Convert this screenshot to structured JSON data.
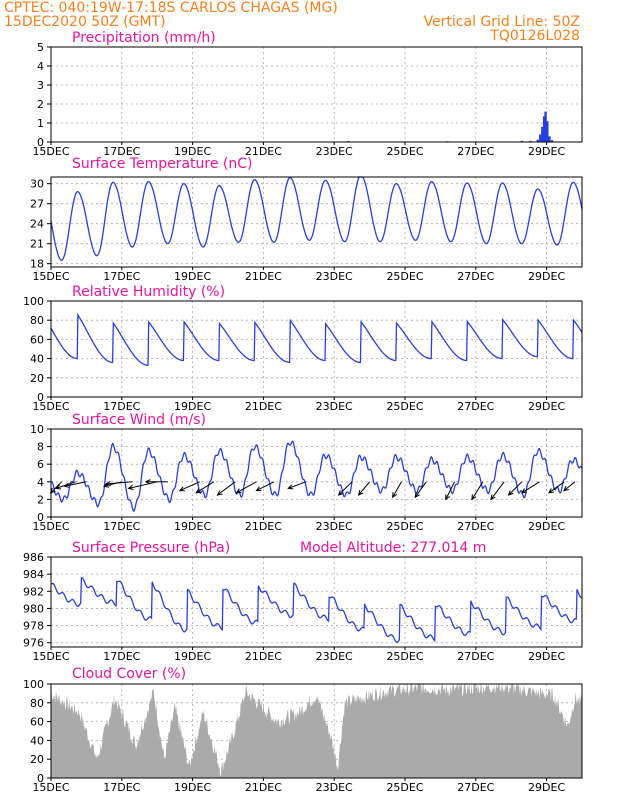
{
  "header": {
    "line1_left": "CPTEC:   040:19W-17:18S   CARLOS CHAGAS (MG)",
    "line2_left": "15DEC2020 50Z (GMT)",
    "line2_right": "Vertical Grid Line: 50Z",
    "line3_right": "TQ0126L028"
  },
  "x_axis": {
    "ticks": [
      {
        "day": 0,
        "label": "15DEC"
      },
      {
        "day": 2,
        "label": "17DEC"
      },
      {
        "day": 4,
        "label": "19DEC"
      },
      {
        "day": 6,
        "label": "21DEC"
      },
      {
        "day": 8,
        "label": "23DEC"
      },
      {
        "day": 10,
        "label": "25DEC"
      },
      {
        "day": 12,
        "label": "27DEC"
      },
      {
        "day": 14,
        "label": "29DEC"
      }
    ],
    "range_days": [
      0,
      15
    ]
  },
  "colors": {
    "series": "#2a3fe0",
    "title": "#e8179b",
    "header": "#ff7f1f",
    "cloud": "#aaaaaa"
  },
  "chart_data": [
    {
      "type": "bar",
      "title": "Precipitation (mm/h)",
      "yticks": [
        0,
        1,
        2,
        3,
        4,
        5
      ],
      "ylim": [
        0,
        5
      ],
      "points": [
        [
          8.4,
          0.05
        ],
        [
          11.2,
          0.04
        ],
        [
          13.3,
          0.06
        ],
        [
          13.55,
          0.06
        ],
        [
          13.75,
          0.12
        ],
        [
          13.82,
          0.4
        ],
        [
          13.88,
          0.8
        ],
        [
          13.93,
          1.35
        ],
        [
          13.97,
          1.6
        ],
        [
          14.02,
          1.1
        ],
        [
          14.08,
          0.3
        ],
        [
          14.15,
          0.1
        ]
      ],
      "grid": true
    },
    {
      "type": "line",
      "title": "Surface Temperature (nC)",
      "yticks": [
        18,
        21,
        24,
        27,
        30
      ],
      "ylim": [
        17.5,
        31
      ],
      "daily_max": [
        28.8,
        30.2,
        30.3,
        30.0,
        29.7,
        30.6,
        30.9,
        30.5,
        31.3,
        30.0,
        30.3,
        30.1,
        30.1,
        29.2,
        30.2
      ],
      "daily_min": [
        18.5,
        19.2,
        20.5,
        21.0,
        20.5,
        21.2,
        21.2,
        21.5,
        21.3,
        21.3,
        21.5,
        21.3,
        21.0,
        21.0,
        20.8
      ],
      "grid": true
    },
    {
      "type": "line",
      "title": "Relative Humidity (%)",
      "yticks": [
        0,
        20,
        40,
        60,
        80,
        100
      ],
      "ylim": [
        0,
        100
      ],
      "daily_max": [
        100,
        90,
        90,
        90,
        88,
        90,
        92,
        88,
        90,
        88,
        90,
        90,
        92,
        92,
        92
      ],
      "daily_min": [
        40,
        36,
        33,
        38,
        38,
        38,
        36,
        38,
        36,
        38,
        40,
        38,
        40,
        42,
        40
      ],
      "grid": true
    },
    {
      "type": "line",
      "title": "Surface Wind (m/s)",
      "yticks": [
        0,
        2,
        4,
        6,
        8,
        10
      ],
      "ylim": [
        0,
        10
      ],
      "daily_max": [
        5.0,
        8.0,
        7.5,
        7.0,
        7.5,
        8.0,
        8.5,
        7.0,
        6.8,
        6.8,
        6.5,
        6.8,
        7.0,
        7.5,
        6.5
      ],
      "daily_min": [
        2.0,
        1.5,
        1.0,
        2.0,
        2.5,
        2.5,
        2.5,
        2.5,
        2.5,
        3.0,
        3.0,
        3.0,
        3.0,
        2.5,
        3.0
      ],
      "wind_vectors": [
        [
          0.3,
          -0.5,
          -0.5
        ],
        [
          0.7,
          -0.9,
          -0.3
        ],
        [
          1.0,
          -1.0,
          -0.2
        ],
        [
          2.0,
          -0.8,
          -0.2
        ],
        [
          2.3,
          -1.2,
          -0.1
        ],
        [
          3.0,
          -1.3,
          -0.3
        ],
        [
          3.3,
          -1.0,
          0.0
        ],
        [
          4.2,
          -0.9,
          -0.4
        ],
        [
          4.6,
          -0.8,
          -0.5
        ],
        [
          5.2,
          -0.8,
          -0.6
        ],
        [
          5.8,
          -0.9,
          -0.5
        ],
        [
          6.3,
          -0.8,
          -0.4
        ],
        [
          7.2,
          -0.8,
          -0.3
        ],
        [
          8.5,
          -0.6,
          -0.6
        ],
        [
          9.0,
          -0.5,
          -0.6
        ],
        [
          9.9,
          -0.4,
          -0.7
        ],
        [
          10.6,
          -0.5,
          -0.7
        ],
        [
          11.4,
          -0.4,
          -0.8
        ],
        [
          12.2,
          -0.5,
          -0.8
        ],
        [
          12.8,
          -0.6,
          -0.8
        ],
        [
          13.3,
          -0.6,
          -0.6
        ],
        [
          13.8,
          -0.8,
          -0.5
        ],
        [
          14.5,
          -0.7,
          -0.5
        ],
        [
          14.8,
          -0.5,
          -0.4
        ]
      ],
      "grid": true
    },
    {
      "type": "line",
      "title": "Surface Pressure (hPa)",
      "annotation": "Model Altitude: 277.014 m",
      "yticks": [
        976,
        978,
        980,
        982,
        984,
        986
      ],
      "ylim": [
        975.5,
        986
      ],
      "daily_max": [
        984.0,
        984.6,
        984.4,
        983.0,
        983.5,
        983.4,
        983.7,
        982.6,
        981.4,
        981.2,
        981.4,
        981.6,
        982.0,
        982.5,
        982.9
      ],
      "daily_min": [
        980.5,
        980.6,
        978.7,
        977.5,
        977.8,
        978.3,
        979.2,
        978.8,
        977.5,
        976.3,
        976.5,
        977.0,
        977.2,
        977.8,
        978.5
      ],
      "grid": true
    },
    {
      "type": "area",
      "title": "Cloud Cover (%)",
      "yticks": [
        0,
        20,
        40,
        60,
        80,
        100
      ],
      "ylim": [
        0,
        100
      ],
      "segments": [
        [
          0.0,
          90
        ],
        [
          0.8,
          70
        ],
        [
          1.3,
          20
        ],
        [
          1.8,
          85
        ],
        [
          2.4,
          35
        ],
        [
          2.9,
          92
        ],
        [
          3.2,
          20
        ],
        [
          3.5,
          75
        ],
        [
          3.9,
          12
        ],
        [
          4.3,
          70
        ],
        [
          4.8,
          8
        ],
        [
          5.1,
          40
        ],
        [
          5.5,
          92
        ],
        [
          6.4,
          60
        ],
        [
          7.0,
          70
        ],
        [
          7.5,
          88
        ],
        [
          7.9,
          45
        ],
        [
          8.1,
          12
        ],
        [
          8.3,
          80
        ],
        [
          9.0,
          88
        ],
        [
          9.5,
          93
        ],
        [
          10.5,
          96
        ],
        [
          11.3,
          94
        ],
        [
          12.0,
          96
        ],
        [
          12.7,
          98
        ],
        [
          13.3,
          94
        ],
        [
          13.8,
          90
        ],
        [
          14.2,
          88
        ],
        [
          14.6,
          55
        ],
        [
          14.8,
          85
        ],
        [
          15.0,
          80
        ]
      ],
      "grid": true
    }
  ]
}
